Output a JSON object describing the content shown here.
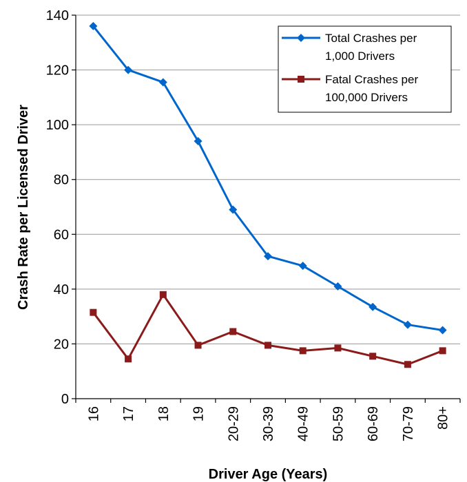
{
  "chart_data": {
    "type": "line",
    "title": "",
    "xlabel": "Driver Age (Years)",
    "ylabel": "Crash Rate per Licensed Driver",
    "categories": [
      "16",
      "17",
      "18",
      "19",
      "20-29",
      "30-39",
      "40-49",
      "50-59",
      "60-69",
      "70-79",
      "80+"
    ],
    "ylim": [
      0,
      140
    ],
    "yticks": [
      0,
      20,
      40,
      60,
      80,
      100,
      120,
      140
    ],
    "grid": true,
    "legend_position": "top-right",
    "series": [
      {
        "name_lines": [
          "Total Crashes per",
          "1,000 Drivers"
        ],
        "color": "#0066cc",
        "marker": "diamond",
        "values": [
          136,
          120,
          115.5,
          94,
          69,
          52,
          48.5,
          41,
          33.5,
          27,
          25
        ]
      },
      {
        "name_lines": [
          "Fatal Crashes per",
          "100,000 Drivers"
        ],
        "color": "#8b1a1a",
        "marker": "square",
        "values": [
          31.5,
          14.5,
          38,
          19.5,
          24.5,
          19.5,
          17.5,
          18.5,
          15.5,
          12.5,
          17.5
        ]
      }
    ]
  }
}
